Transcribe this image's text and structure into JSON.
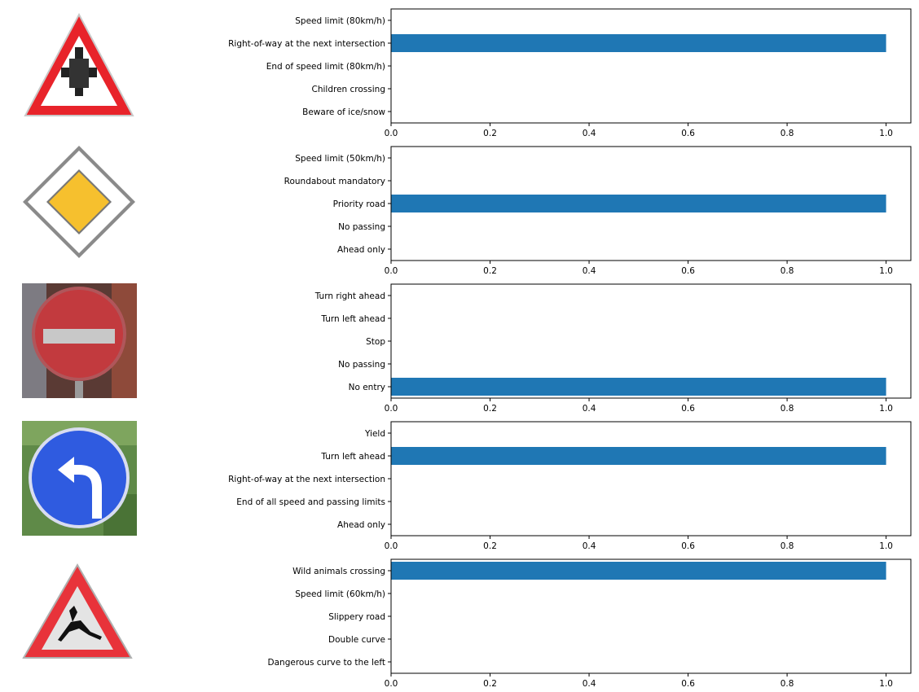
{
  "chart_data": [
    {
      "type": "bar",
      "orientation": "horizontal",
      "sign": "right-of-way-sign-icon",
      "categories": [
        "Speed limit (80km/h)",
        "Right-of-way at the next intersection",
        "End of speed limit (80km/h)",
        "Children crossing",
        "Beware of ice/snow"
      ],
      "values": [
        0.0,
        1.0,
        0.0,
        0.0,
        0.0
      ],
      "xlim": [
        0.0,
        1.05
      ],
      "xticks": [
        "0.0",
        "0.2",
        "0.4",
        "0.6",
        "0.8",
        "1.0"
      ],
      "grid": false,
      "bar_color": "#1f77b4"
    },
    {
      "type": "bar",
      "orientation": "horizontal",
      "sign": "priority-road-sign-icon",
      "categories": [
        "Speed limit (50km/h)",
        "Roundabout mandatory",
        "Priority road",
        "No passing",
        "Ahead only"
      ],
      "values": [
        0.0,
        0.0,
        1.0,
        0.0,
        0.0
      ],
      "xlim": [
        0.0,
        1.05
      ],
      "xticks": [
        "0.0",
        "0.2",
        "0.4",
        "0.6",
        "0.8",
        "1.0"
      ],
      "grid": false,
      "bar_color": "#1f77b4"
    },
    {
      "type": "bar",
      "orientation": "horizontal",
      "sign": "no-entry-sign-icon",
      "categories": [
        "Turn right ahead",
        "Turn left ahead",
        "Stop",
        "No passing",
        "No entry"
      ],
      "values": [
        0.0,
        0.0,
        0.0,
        0.0,
        1.0
      ],
      "xlim": [
        0.0,
        1.05
      ],
      "xticks": [
        "0.0",
        "0.2",
        "0.4",
        "0.6",
        "0.8",
        "1.0"
      ],
      "grid": false,
      "bar_color": "#1f77b4"
    },
    {
      "type": "bar",
      "orientation": "horizontal",
      "sign": "turn-left-ahead-sign-icon",
      "categories": [
        "Yield",
        "Turn left ahead",
        "Right-of-way at the next intersection",
        "End of all speed and passing limits",
        "Ahead only"
      ],
      "values": [
        0.0,
        1.0,
        0.0,
        0.0,
        0.0
      ],
      "xlim": [
        0.0,
        1.05
      ],
      "xticks": [
        "0.0",
        "0.2",
        "0.4",
        "0.6",
        "0.8",
        "1.0"
      ],
      "grid": false,
      "bar_color": "#1f77b4"
    },
    {
      "type": "bar",
      "orientation": "horizontal",
      "sign": "wild-animals-crossing-sign-icon",
      "categories": [
        "Wild animals crossing",
        "Speed limit (60km/h)",
        "Slippery road",
        "Double curve",
        "Dangerous curve to the left"
      ],
      "values": [
        1.0,
        0.0,
        0.0,
        0.0,
        0.0
      ],
      "xlim": [
        0.0,
        1.05
      ],
      "xticks": [
        "0.0",
        "0.2",
        "0.4",
        "0.6",
        "0.8",
        "1.0"
      ],
      "grid": false,
      "bar_color": "#1f77b4"
    }
  ]
}
